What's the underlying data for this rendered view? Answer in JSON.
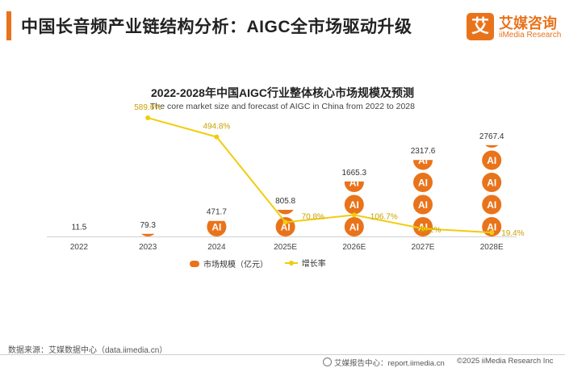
{
  "header": {
    "title": "中国长音频产业链结构分析：AIGC全市场驱动升级",
    "logo_mark": "艾",
    "logo_cn": "艾媒咨询",
    "logo_en": "iiMedia Research"
  },
  "chart_data": {
    "type": "bar",
    "title": "2022-2028年中国AIGC行业整体核心市场规模及预测",
    "subtitle": "The core market size and forecast of AIGC in China from 2022 to 2028",
    "categories": [
      "2022",
      "2023",
      "2024",
      "2025E",
      "2026E",
      "2027E",
      "2028E"
    ],
    "series": [
      {
        "name": "市场规模（亿元）",
        "type": "bar",
        "values": [
          11.5,
          79.3,
          471.7,
          805.8,
          1665.3,
          2317.6,
          2767.4
        ],
        "labels": [
          "11.5",
          "79.3",
          "471.7",
          "805.8",
          "1665.3",
          "2317.6",
          "2767.4"
        ],
        "color": "#e9731b",
        "icon": "AI"
      },
      {
        "name": "增长率",
        "type": "line",
        "values": [
          null,
          589.6,
          494.8,
          70.8,
          106.7,
          39.2,
          19.4
        ],
        "labels": [
          "",
          "589.6%",
          "494.8%",
          "70.8%",
          "106.7%",
          "39.2%",
          "19.4%"
        ],
        "color": "#f2cc0c"
      }
    ],
    "ylim": [
      0,
      3000
    ],
    "y2lim": [
      0,
      650
    ],
    "grid": false,
    "legend_position": "bottom-left"
  },
  "footer": {
    "source": "数据来源：艾媒数据中心（data.iimedia.cn）",
    "report": "艾媒报告中心：report.iimedia.cn",
    "copyright": "©2025  iiMedia Research  Inc"
  }
}
